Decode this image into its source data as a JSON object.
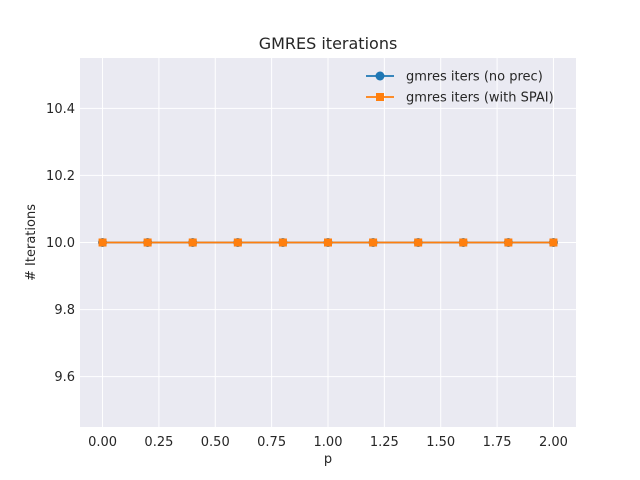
{
  "chart_data": {
    "type": "line",
    "title": "GMRES iterations",
    "xlabel": "p",
    "ylabel": "# Iterations",
    "x": [
      0.0,
      0.2,
      0.4,
      0.6,
      0.8,
      1.0,
      1.2,
      1.4,
      1.6,
      1.8,
      2.0
    ],
    "xlim": [
      -0.1,
      2.1
    ],
    "ylim": [
      9.45,
      10.55
    ],
    "xticks": [
      0.0,
      0.25,
      0.5,
      0.75,
      1.0,
      1.25,
      1.5,
      1.75,
      2.0
    ],
    "xtick_labels": [
      "0.00",
      "0.25",
      "0.50",
      "0.75",
      "1.00",
      "1.25",
      "1.50",
      "1.75",
      "2.00"
    ],
    "yticks": [
      9.6,
      9.8,
      10.0,
      10.2,
      10.4
    ],
    "ytick_labels": [
      "9.6",
      "9.8",
      "10.0",
      "10.2",
      "10.4"
    ],
    "grid": true,
    "legend_position": "top-right",
    "background_color": "#eaeaf2",
    "series": [
      {
        "name": "gmres iters (no prec)",
        "marker": "circle",
        "color": "#1f77b4",
        "values": [
          10,
          10,
          10,
          10,
          10,
          10,
          10,
          10,
          10,
          10,
          10
        ]
      },
      {
        "name": "gmres iters (with SPAI)",
        "marker": "square",
        "color": "#ff7f0e",
        "values": [
          10,
          10,
          10,
          10,
          10,
          10,
          10,
          10,
          10,
          10,
          10
        ]
      }
    ]
  }
}
